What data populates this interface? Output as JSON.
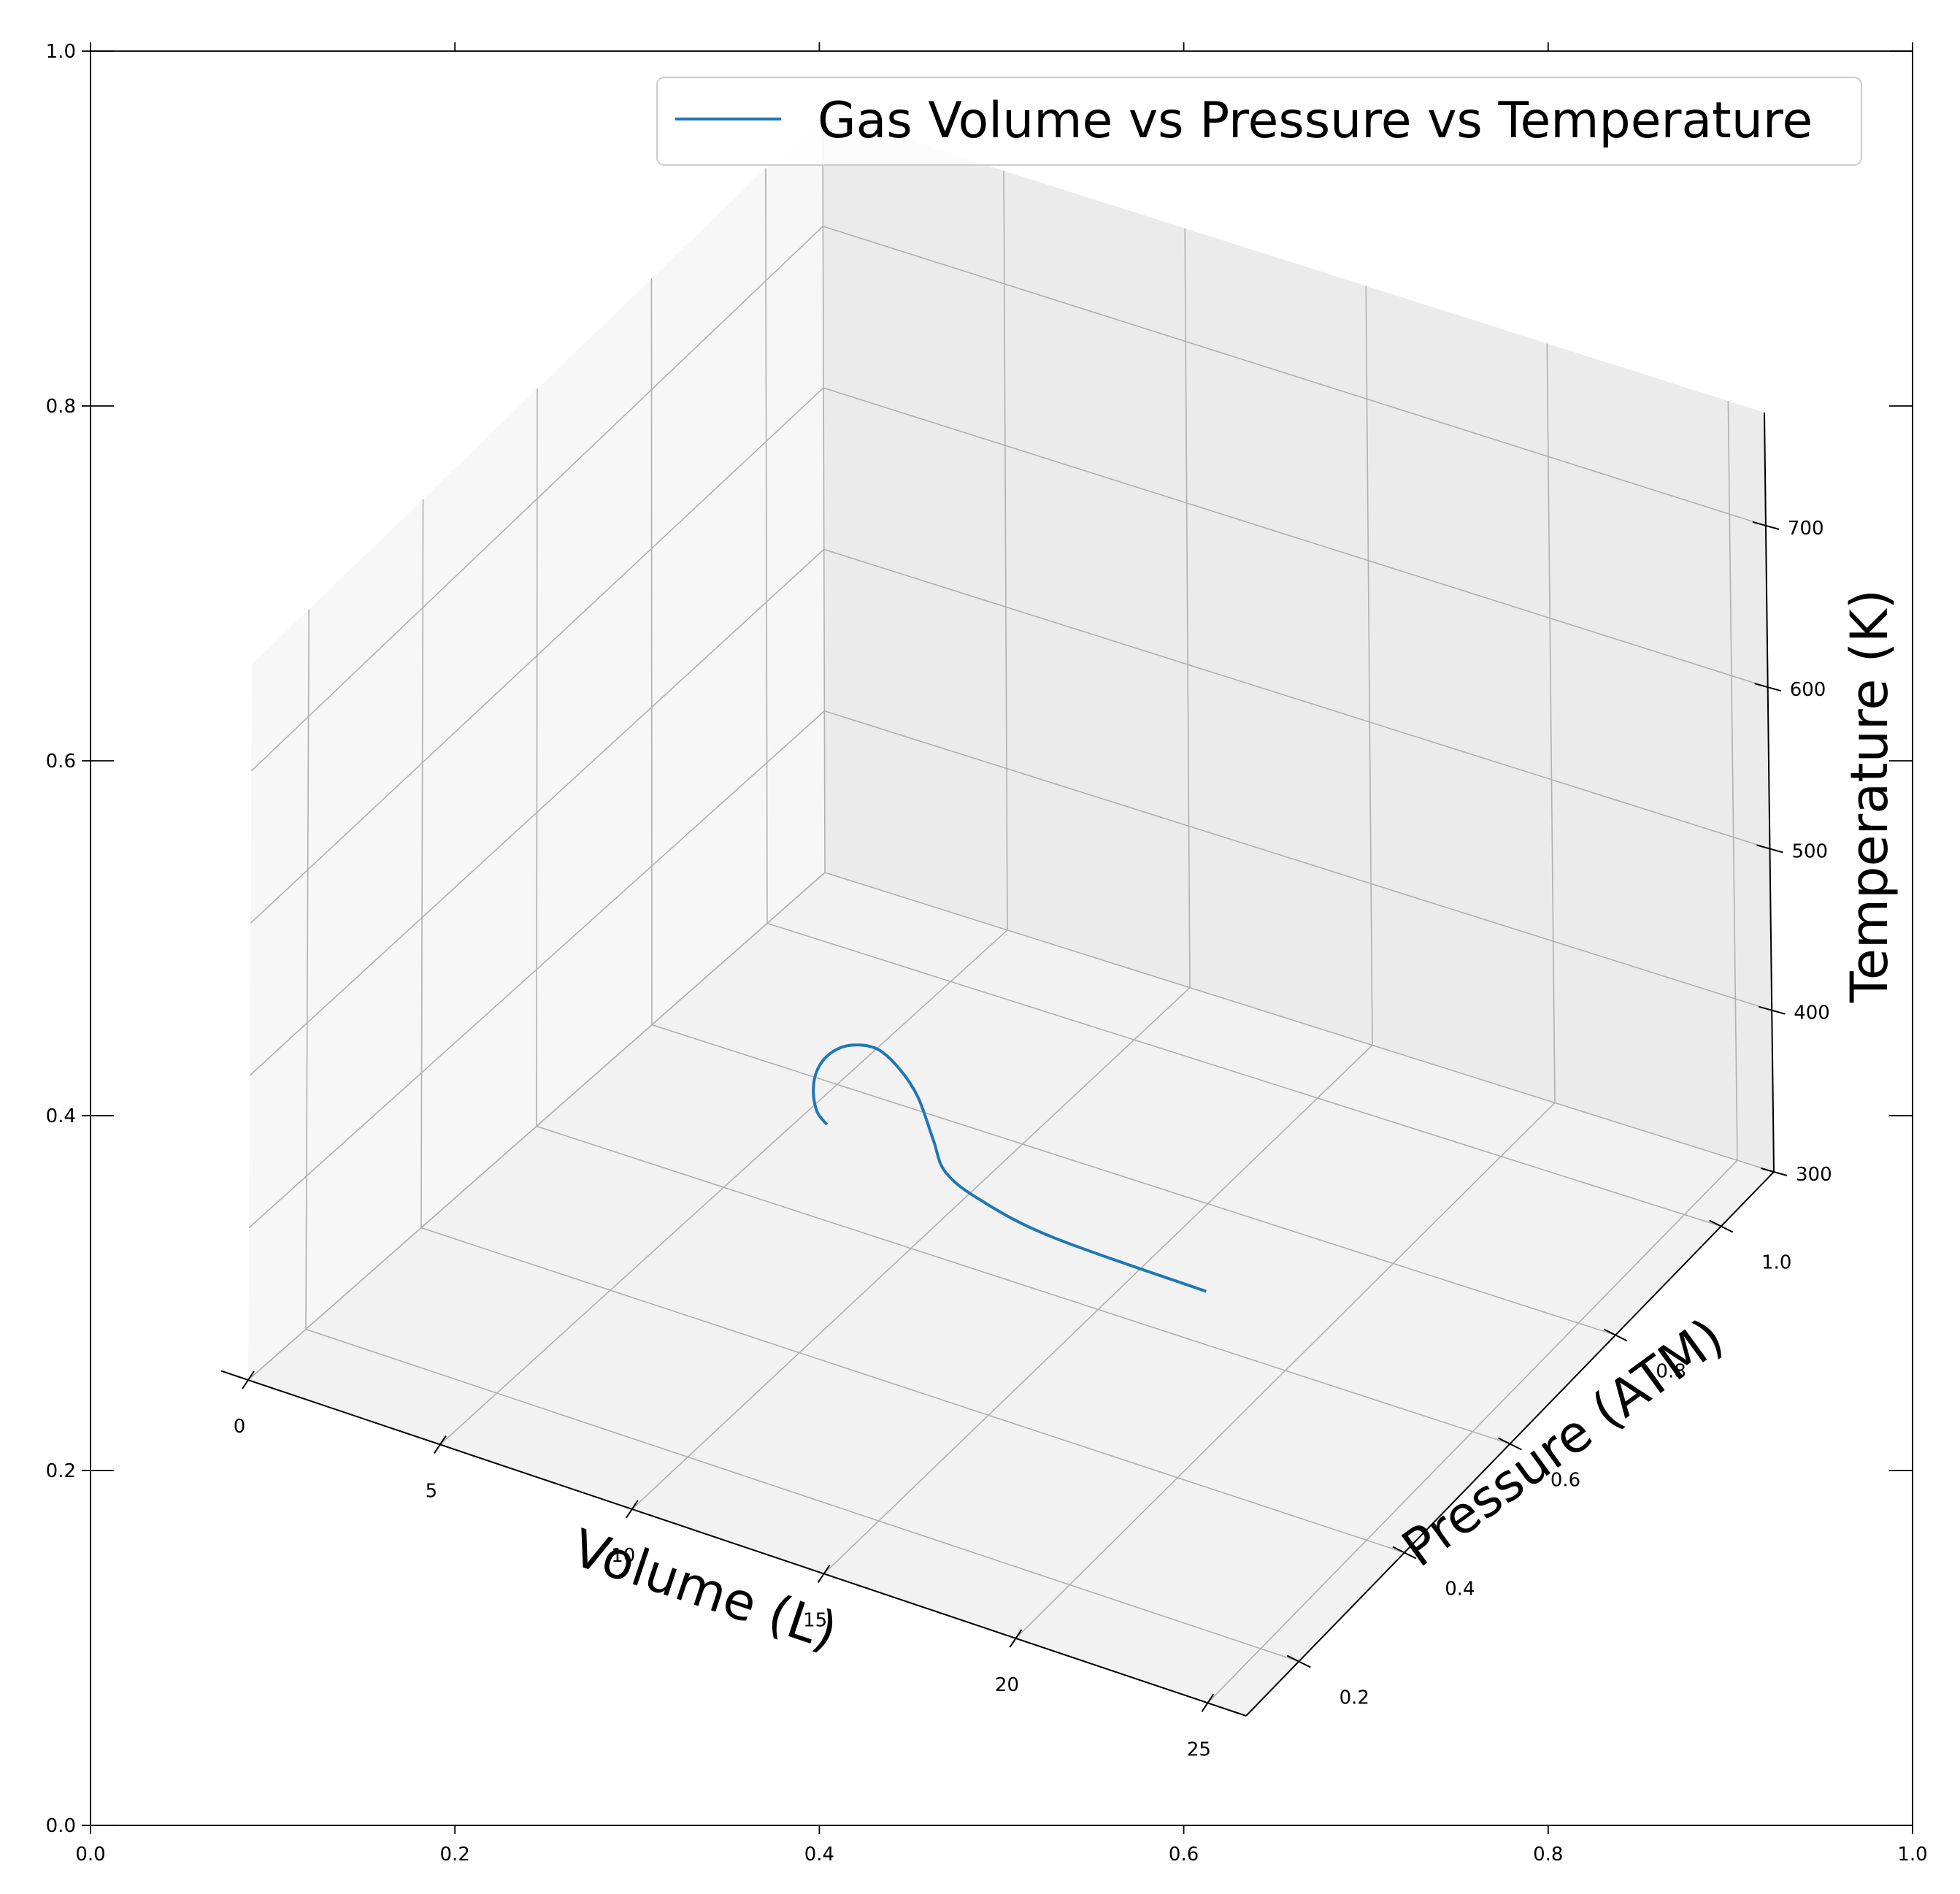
{
  "chart_data": {
    "type": "line",
    "projection": "3d",
    "legend": {
      "placement": "top-right",
      "entries": [
        "Gas Volume vs Pressure vs Temperature"
      ]
    },
    "series": [
      {
        "name": "Gas Volume vs Pressure vs Temperature",
        "color": "#1f77b4",
        "points": [
          {
            "x": 10,
            "y": 0.45,
            "z": 430
          },
          {
            "x": 9,
            "y": 0.5,
            "z": 413
          },
          {
            "x": 8,
            "y": 0.56,
            "z": 398
          },
          {
            "x": 7.2,
            "y": 0.62,
            "z": 385
          },
          {
            "x": 6.8,
            "y": 0.67,
            "z": 376
          },
          {
            "x": 6.9,
            "y": 0.7,
            "z": 372
          },
          {
            "x": 7.6,
            "y": 0.7,
            "z": 375
          },
          {
            "x": 8.8,
            "y": 0.66,
            "z": 385
          },
          {
            "x": 10.2,
            "y": 0.6,
            "z": 398
          },
          {
            "x": 11.8,
            "y": 0.52,
            "z": 410
          },
          {
            "x": 13,
            "y": 0.46,
            "z": 420
          },
          {
            "x": 14.5,
            "y": 0.42,
            "z": 428
          },
          {
            "x": 17,
            "y": 0.38,
            "z": 438
          },
          {
            "x": 21.5,
            "y": 0.35,
            "z": 450
          }
        ]
      }
    ],
    "axes3d": {
      "xlabel": "Volume (L)",
      "ylabel": "Pressure (ATM)",
      "zlabel": "Temperature (K)",
      "xlim": [
        0,
        26
      ],
      "ylim": [
        0.1,
        1.1
      ],
      "zlim": [
        300,
        770
      ],
      "x_ticks": [
        "0",
        "5",
        "10",
        "15",
        "20",
        "25"
      ],
      "y_ticks": [
        "0.2",
        "0.4",
        "0.6",
        "0.8",
        "1.0"
      ],
      "z_ticks": [
        "300",
        "400",
        "500",
        "600",
        "700"
      ],
      "grid": true
    },
    "outer_axes": {
      "x_ticks": [
        "0.0",
        "0.2",
        "0.4",
        "0.6",
        "0.8",
        "1.0"
      ],
      "y_ticks": [
        "0.0",
        "0.2",
        "0.4",
        "0.6",
        "0.8",
        "1.0"
      ]
    }
  }
}
